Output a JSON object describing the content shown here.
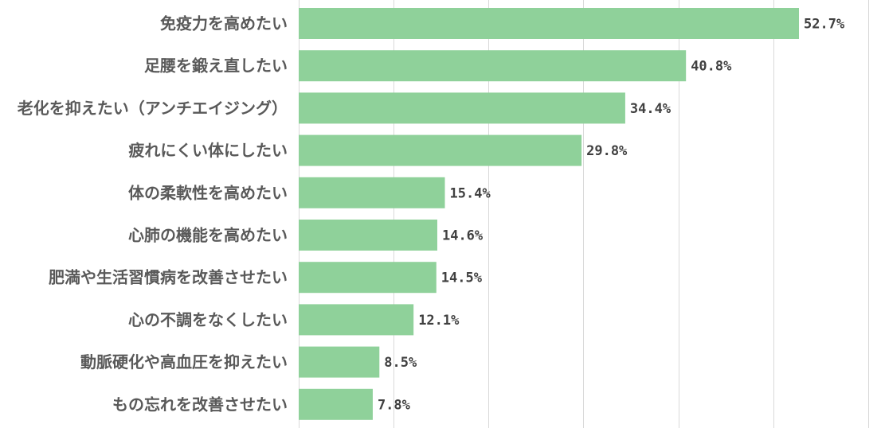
{
  "chart_data": {
    "type": "bar",
    "orientation": "horizontal",
    "categories": [
      "免疫力を高めたい",
      "足腰を鍛え直したい",
      "老化を抑えたい（アンチエイジング）",
      "疲れにくい体にしたい",
      "体の柔軟性を高めたい",
      "心肺の機能を高めたい",
      "肥満や生活習慣病を改善させたい",
      "心の不調をなくしたい",
      "動脈硬化や高血圧を抑えたい",
      "もの忘れを改善させたい"
    ],
    "values": [
      52.7,
      40.8,
      34.4,
      29.8,
      15.4,
      14.6,
      14.5,
      12.1,
      8.5,
      7.8
    ],
    "value_labels": [
      "52.7%",
      "40.8%",
      "34.4%",
      "29.8%",
      "15.4%",
      "14.6%",
      "14.5%",
      "12.1%",
      "8.5%",
      "7.8%"
    ],
    "xlim": [
      0,
      60
    ],
    "grid": true,
    "bar_color": "#8fd19a",
    "grid_color": "#d9d9d9"
  }
}
